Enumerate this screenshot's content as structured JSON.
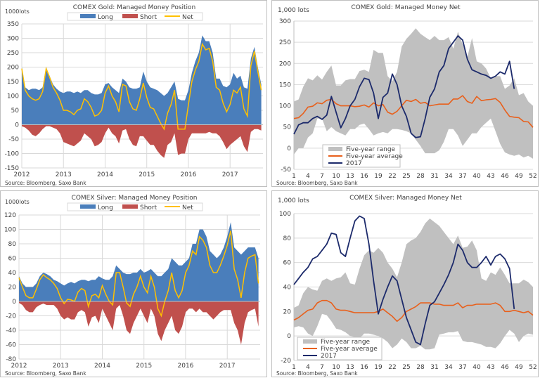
{
  "colors": {
    "long": "#4a7ebb",
    "short": "#c0504d",
    "net": "#ffc000",
    "range": "#c0c0c0",
    "average": "#e8601c",
    "current": "#1c2a6b",
    "grid": "#d9d9d9"
  },
  "chart_data": [
    {
      "type": "area",
      "title": "COMEX Gold: Managed Money Position",
      "ylabel": "1000lots",
      "source": "Source: Bloomberg, Saxo Bank",
      "ylim": [
        -150,
        350
      ],
      "yticks": [
        350,
        300,
        250,
        200,
        150,
        100,
        50,
        0,
        -50,
        -100,
        -150
      ],
      "xticks": [
        "2012",
        "2013",
        "2014",
        "2015",
        "2016",
        "2017"
      ],
      "legend": {
        "placement": "top",
        "entries": [
          "Long",
          "Short",
          "Net"
        ]
      },
      "grid": true,
      "start": "2012-01",
      "series": [
        {
          "name": "Long",
          "values": [
            200,
            130,
            120,
            125,
            125,
            120,
            130,
            200,
            170,
            140,
            125,
            115,
            110,
            115,
            115,
            110,
            115,
            110,
            120,
            120,
            110,
            105,
            105,
            110,
            140,
            145,
            130,
            120,
            110,
            160,
            150,
            130,
            125,
            125,
            130,
            185,
            150,
            130,
            125,
            120,
            110,
            100,
            110,
            130,
            150,
            90,
            85,
            85,
            120,
            180,
            220,
            250,
            310,
            290,
            290,
            250,
            160,
            160,
            135,
            130,
            140,
            180,
            160,
            170,
            130,
            125,
            230,
            270,
            200,
            140
          ]
        },
        {
          "name": "Short",
          "values": [
            -5,
            -10,
            -20,
            -35,
            -40,
            -30,
            -15,
            -5,
            -5,
            -10,
            -15,
            -30,
            -60,
            -65,
            -70,
            -75,
            -65,
            -55,
            -30,
            -40,
            -50,
            -75,
            -70,
            -60,
            -30,
            -10,
            -30,
            -40,
            -65,
            -20,
            -15,
            -50,
            -70,
            -75,
            -40,
            -40,
            -55,
            -70,
            -70,
            -90,
            -105,
            -115,
            -70,
            -60,
            -30,
            -105,
            -100,
            -100,
            -50,
            -30,
            -30,
            -30,
            -30,
            -30,
            -25,
            -30,
            -30,
            -40,
            -60,
            -85,
            -70,
            -60,
            -50,
            -40,
            -75,
            -95,
            -25,
            -15,
            -15,
            -20
          ]
        },
        {
          "name": "Net",
          "values": [
            195,
            120,
            100,
            90,
            85,
            90,
            115,
            195,
            165,
            130,
            110,
            85,
            50,
            50,
            45,
            35,
            50,
            55,
            90,
            80,
            60,
            30,
            35,
            50,
            110,
            135,
            100,
            80,
            45,
            140,
            135,
            80,
            55,
            50,
            90,
            145,
            95,
            60,
            55,
            30,
            5,
            -15,
            40,
            70,
            120,
            -15,
            -15,
            -15,
            70,
            150,
            190,
            220,
            280,
            260,
            265,
            220,
            130,
            120,
            75,
            45,
            70,
            120,
            110,
            130,
            55,
            30,
            205,
            255,
            185,
            120
          ]
        }
      ]
    },
    {
      "type": "line",
      "title": "COMEX Gold: Managed Money Net",
      "ylabel": "1,000 lots",
      "source": "Source: Bloomberg, Saxo Bank",
      "ylim": [
        -50,
        300
      ],
      "yticks": [
        300,
        250,
        200,
        150,
        100,
        50,
        0,
        -50
      ],
      "xticks": [
        1,
        4,
        7,
        10,
        13,
        16,
        19,
        22,
        25,
        28,
        31,
        34,
        37,
        40,
        43,
        46,
        49,
        52
      ],
      "xlim": [
        1,
        52
      ],
      "legend": {
        "placement": "bottom-left",
        "entries": [
          "Five-year range",
          "Five-year average",
          "2017"
        ]
      },
      "grid": true,
      "range_max": [
        110,
        115,
        145,
        165,
        160,
        172,
        162,
        180,
        195,
        148,
        148,
        160,
        163,
        163,
        182,
        185,
        180,
        232,
        225,
        225,
        170,
        158,
        180,
        240,
        258,
        270,
        283,
        270,
        262,
        255,
        265,
        255,
        255,
        262,
        235,
        275,
        245,
        215,
        260,
        205,
        200,
        188,
        165,
        170,
        170,
        140,
        148,
        165,
        125,
        130,
        110,
        100
      ],
      "range_min": [
        -15,
        0,
        0,
        25,
        35,
        70,
        70,
        40,
        50,
        40,
        35,
        30,
        45,
        45,
        55,
        58,
        45,
        30,
        35,
        38,
        35,
        45,
        45,
        43,
        40,
        35,
        20,
        5,
        -12,
        -12,
        -12,
        -5,
        15,
        45,
        45,
        30,
        5,
        20,
        35,
        35,
        50,
        60,
        70,
        40,
        10,
        -10,
        -15,
        -18,
        -15,
        -22,
        -18,
        -25
      ],
      "average": [
        70,
        72,
        82,
        97,
        99,
        107,
        105,
        113,
        115,
        105,
        100,
        100,
        100,
        98,
        99,
        102,
        97,
        107,
        100,
        103,
        85,
        80,
        87,
        100,
        113,
        110,
        115,
        106,
        108,
        100,
        102,
        104,
        104,
        104,
        116,
        116,
        124,
        110,
        106,
        122,
        112,
        114,
        115,
        117,
        108,
        90,
        75,
        73,
        72,
        63,
        62,
        49
      ],
      "current_year": [
        33,
        55,
        60,
        60,
        70,
        75,
        68,
        78,
        122,
        85,
        48,
        70,
        100,
        115,
        145,
        165,
        162,
        130,
        70,
        120,
        130,
        175,
        150,
        100,
        75,
        35,
        25,
        27,
        70,
        120,
        140,
        180,
        195,
        235,
        250,
        265,
        255,
        210,
        185,
        180,
        175,
        172,
        165,
        170,
        180,
        175,
        205,
        140
      ]
    },
    {
      "type": "area",
      "title": "COMEX Silver: Managed Money Position",
      "ylabel": "1000lots",
      "source": "Source: Bloomberg, Saxo Bank",
      "ylim": [
        -80,
        120
      ],
      "yticks": [
        120,
        100,
        80,
        60,
        40,
        20,
        0,
        -20,
        -40,
        -60,
        -80
      ],
      "xticks": [
        "2012",
        "2013",
        "2014",
        "2015",
        "2016",
        "2017"
      ],
      "legend": {
        "placement": "top",
        "entries": [
          "Long",
          "Short",
          "Net"
        ]
      },
      "grid": true,
      "start": "2012-01",
      "series": [
        {
          "name": "Long",
          "values": [
            35,
            25,
            20,
            20,
            20,
            25,
            35,
            40,
            38,
            35,
            30,
            28,
            25,
            22,
            25,
            27,
            25,
            28,
            30,
            30,
            28,
            30,
            30,
            35,
            32,
            30,
            30,
            35,
            50,
            45,
            40,
            38,
            38,
            40,
            40,
            45,
            40,
            42,
            45,
            40,
            35,
            35,
            40,
            45,
            60,
            55,
            50,
            50,
            55,
            60,
            80,
            80,
            100,
            100,
            90,
            70,
            65,
            60,
            65,
            75,
            90,
            110,
            75,
            70,
            65,
            70,
            75,
            75,
            75,
            60
          ]
        },
        {
          "name": "Short",
          "values": [
            -2,
            -5,
            -12,
            -15,
            -15,
            -8,
            -5,
            -3,
            -5,
            -5,
            -5,
            -10,
            -20,
            -25,
            -22,
            -25,
            -25,
            -15,
            -12,
            -15,
            -35,
            -22,
            -20,
            -30,
            -10,
            -20,
            -30,
            -40,
            -10,
            -5,
            -20,
            -40,
            -45,
            -30,
            -20,
            -10,
            -20,
            -30,
            -10,
            -20,
            -45,
            -55,
            -40,
            -30,
            -20,
            -40,
            -45,
            -35,
            -15,
            -10,
            -10,
            -15,
            -10,
            -15,
            -15,
            -20,
            -25,
            -20,
            -15,
            -12,
            -12,
            -12,
            -30,
            -40,
            -60,
            -30,
            -15,
            -12,
            -10,
            -35
          ]
        },
        {
          "name": "Net",
          "values": [
            33,
            20,
            8,
            5,
            5,
            17,
            30,
            37,
            33,
            30,
            25,
            18,
            5,
            -3,
            3,
            2,
            0,
            13,
            18,
            15,
            -7,
            8,
            10,
            5,
            22,
            10,
            0,
            -5,
            40,
            40,
            20,
            -2,
            -7,
            10,
            20,
            35,
            20,
            12,
            35,
            20,
            -10,
            -20,
            0,
            15,
            40,
            15,
            5,
            15,
            40,
            50,
            70,
            65,
            90,
            85,
            75,
            50,
            40,
            40,
            50,
            63,
            78,
            98,
            45,
            30,
            5,
            40,
            60,
            63,
            65,
            25
          ]
        }
      ]
    },
    {
      "type": "line",
      "title": "COMEX Silver: Managed Money Net",
      "ylabel": "1,000 lots",
      "source": "Source: Bloomberg, Saxo Bank",
      "ylim": [
        -20,
        100
      ],
      "yticks": [
        100,
        80,
        60,
        40,
        20,
        0,
        -20
      ],
      "xticks": [
        1,
        4,
        7,
        10,
        13,
        16,
        19,
        22,
        25,
        28,
        31,
        34,
        37,
        40,
        43,
        46,
        49,
        52
      ],
      "xlim": [
        1,
        52
      ],
      "legend": {
        "placement": "bottom-left",
        "entries": [
          "Five-year range",
          "Five-year average",
          "2017"
        ]
      },
      "grid": true,
      "range_max": [
        23,
        25,
        35,
        40,
        38,
        37,
        45,
        47,
        45,
        47,
        48,
        52,
        43,
        42,
        55,
        66,
        70,
        68,
        72,
        68,
        60,
        55,
        48,
        60,
        75,
        78,
        80,
        85,
        92,
        96,
        93,
        90,
        85,
        80,
        75,
        82,
        72,
        73,
        78,
        70,
        47,
        45,
        52,
        50,
        56,
        50,
        43,
        43,
        43,
        46,
        44,
        40
      ],
      "range_min": [
        7,
        8,
        7,
        2,
        0,
        8,
        18,
        17,
        12,
        6,
        5,
        3,
        0,
        -1,
        -2,
        2,
        2,
        1,
        0,
        -2,
        -5,
        -10,
        -7,
        -2,
        -5,
        -10,
        -10,
        -8,
        -11,
        -11,
        -10,
        1,
        2,
        3,
        3,
        4,
        -4,
        -5,
        -5,
        -6,
        -7,
        -9,
        -9,
        -10,
        -6,
        0,
        5,
        2,
        -5,
        0,
        2,
        1
      ],
      "average": [
        13,
        15,
        18,
        21,
        22,
        27,
        29,
        29,
        27,
        22,
        21,
        21,
        20,
        19,
        19,
        19,
        19,
        19,
        20,
        22,
        19,
        16,
        12,
        15,
        20,
        22,
        24,
        27,
        27,
        27,
        26,
        26,
        25,
        25,
        25,
        27,
        23,
        25,
        25,
        26,
        26,
        26,
        26,
        27,
        25,
        20,
        20,
        21,
        20,
        19,
        20,
        17
      ],
      "current_year": [
        42,
        47,
        52,
        56,
        63,
        65,
        70,
        75,
        84,
        83,
        68,
        65,
        80,
        94,
        98,
        96,
        75,
        45,
        18,
        30,
        40,
        49,
        45,
        30,
        15,
        5,
        -5,
        -7,
        10,
        25,
        28,
        35,
        42,
        50,
        60,
        75,
        70,
        60,
        56,
        56,
        60,
        65,
        58,
        65,
        67,
        63,
        55,
        22
      ]
    }
  ]
}
